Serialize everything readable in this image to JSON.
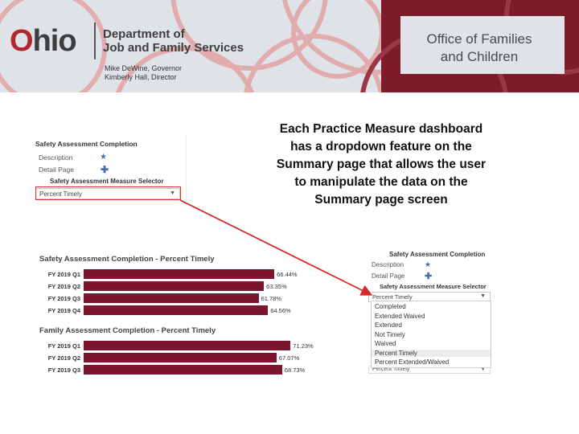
{
  "header": {
    "logo_text": "Ohio",
    "dept_line1": "Department of",
    "dept_line2": "Job and Family Services",
    "governor": "Mike DeWine, Governor",
    "director": "Kimberly Hall, Director",
    "office_line1": "Office of Families",
    "office_line2": "and Children",
    "colors": {
      "banner_bg": "#dfe3e7",
      "brand_red": "#b0282e",
      "arc": "#e0a4a4"
    }
  },
  "caption": "Each Practice Measure dashboard has a dropdown feature on the Summary page that allows the user to manipulate the data on the Summary page screen",
  "selector_panel": {
    "title": "Safety Assessment Completion",
    "description_label": "Description",
    "description_icon": "star-icon",
    "detail_label": "Detail Page",
    "detail_icon": "plus-icon",
    "selector_label": "Safety Assessment Measure Selector",
    "selected_value": "Percent Timely"
  },
  "charts": {
    "safety": {
      "title": "Safety Assessment Completion - Percent Timely",
      "rows": [
        {
          "label": "FY 2019 Q1",
          "value": 66.44,
          "text": "66.44%"
        },
        {
          "label": "FY 2019 Q2",
          "value": 63.35,
          "text": "63.35%"
        },
        {
          "label": "FY 2019 Q3",
          "value": 61.78,
          "text": "61.78%"
        },
        {
          "label": "FY 2019 Q4",
          "value": 64.56,
          "text": "64.56%"
        }
      ]
    },
    "family": {
      "title": "Family Assessment Completion - Percent Timely",
      "rows": [
        {
          "label": "FY 2019 Q1",
          "value": 71.23,
          "text": "71.23%"
        },
        {
          "label": "FY 2019 Q2",
          "value": 67.07,
          "text": "67.07%"
        },
        {
          "label": "FY 2019 Q3",
          "value": 68.73,
          "text": "68.73%"
        }
      ]
    },
    "bar_color": "#7c1530"
  },
  "dropdown_panel": {
    "title": "Safety Assessment Completion",
    "description_label": "Description",
    "detail_label": "Detail Page",
    "selector_label": "Safety Assessment Measure Selector",
    "selected_value": "Percent Timely",
    "options": [
      "Completed",
      "Extended Waived",
      "Extended",
      "Not Timely",
      "Waived",
      "Percent Timely",
      "Percent Extended/Waived"
    ],
    "highlighted_option": "Percent Timely",
    "footer_value": "Percent Timely"
  }
}
